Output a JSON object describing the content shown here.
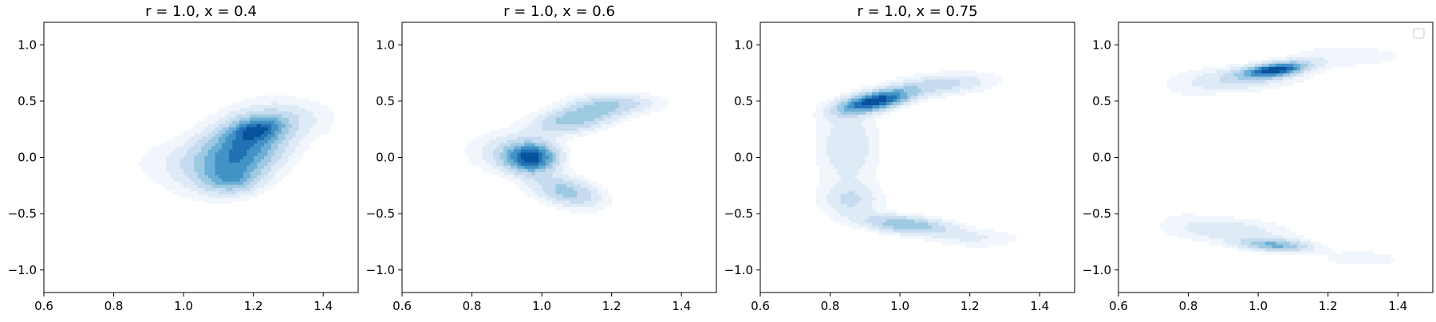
{
  "colors": {
    "background": "#ffffff",
    "axis": "#000000",
    "palette": "Blues"
  },
  "chart_data": [
    {
      "type": "kde-contour",
      "title": "r = 1.0, x = 0.4",
      "xlabel": "",
      "ylabel": "",
      "xlim": [
        0.6,
        1.5
      ],
      "ylim": [
        -1.2,
        1.2
      ],
      "xticks": [
        0.6,
        0.8,
        1.0,
        1.2,
        1.4
      ],
      "xtick_labels": [
        "0.6",
        "0.8",
        "1.0",
        "1.2",
        "1.4"
      ],
      "yticks": [
        1.0,
        0.5,
        0.0,
        -0.5,
        -1.0
      ],
      "ytick_labels": [
        "1.0",
        "0.5",
        "0.0",
        "−0.5",
        "−1.0"
      ],
      "grid": false,
      "legend": null,
      "density_components": [
        {
          "x": 1.16,
          "y": 0.05,
          "sx": 0.09,
          "sy": 0.2,
          "rho": 0.35,
          "w": 1.0
        },
        {
          "x": 1.21,
          "y": 0.25,
          "sx": 0.05,
          "sy": 0.07,
          "rho": 0.3,
          "w": 0.6
        },
        {
          "x": 1.14,
          "y": -0.2,
          "sx": 0.05,
          "sy": 0.08,
          "rho": 0.0,
          "w": 0.4
        },
        {
          "x": 1.3,
          "y": 0.35,
          "sx": 0.1,
          "sy": 0.12,
          "rho": 0.0,
          "w": 0.2
        },
        {
          "x": 0.98,
          "y": -0.05,
          "sx": 0.1,
          "sy": 0.15,
          "rho": 0.0,
          "w": 0.15
        }
      ]
    },
    {
      "type": "kde-contour",
      "title": "r = 1.0, x = 0.6",
      "xlabel": "",
      "ylabel": "",
      "xlim": [
        0.6,
        1.5
      ],
      "ylim": [
        -1.2,
        1.2
      ],
      "xticks": [
        0.6,
        0.8,
        1.0,
        1.2,
        1.4
      ],
      "xtick_labels": [
        "0.6",
        "0.8",
        "1.0",
        "1.2",
        "1.4"
      ],
      "yticks": [
        1.0,
        0.5,
        0.0,
        -0.5,
        -1.0
      ],
      "ytick_labels": [
        "1.0",
        "0.5",
        "0.0",
        "−0.5",
        "−1.0"
      ],
      "grid": false,
      "legend": null,
      "density_components": [
        {
          "x": 0.97,
          "y": 0.0,
          "sx": 0.05,
          "sy": 0.09,
          "rho": 0.0,
          "w": 1.0
        },
        {
          "x": 1.1,
          "y": 0.35,
          "sx": 0.09,
          "sy": 0.1,
          "rho": 0.5,
          "w": 0.5
        },
        {
          "x": 1.07,
          "y": -0.3,
          "sx": 0.07,
          "sy": 0.1,
          "rho": -0.4,
          "w": 0.45
        },
        {
          "x": 1.22,
          "y": 0.48,
          "sx": 0.09,
          "sy": 0.06,
          "rho": 0.0,
          "w": 0.25
        },
        {
          "x": 0.88,
          "y": 0.05,
          "sx": 0.07,
          "sy": 0.12,
          "rho": 0.0,
          "w": 0.2
        }
      ]
    },
    {
      "type": "kde-contour",
      "title": "r = 1.0, x = 0.75",
      "xlabel": "",
      "ylabel": "",
      "xlim": [
        0.6,
        1.5
      ],
      "ylim": [
        -1.2,
        1.2
      ],
      "xticks": [
        0.6,
        0.8,
        1.0,
        1.2,
        1.4
      ],
      "xtick_labels": [
        "0.6",
        "0.8",
        "1.0",
        "1.2",
        "1.4"
      ],
      "yticks": [
        1.0,
        0.5,
        0.0,
        -0.5,
        -1.0
      ],
      "ytick_labels": [
        "1.0",
        "0.5",
        "0.0",
        "−0.5",
        "−1.0"
      ],
      "grid": false,
      "legend": null,
      "density_components": [
        {
          "x": 0.93,
          "y": 0.5,
          "sx": 0.07,
          "sy": 0.07,
          "rho": 0.6,
          "w": 1.0
        },
        {
          "x": 1.12,
          "y": 0.65,
          "sx": 0.1,
          "sy": 0.07,
          "rho": 0.3,
          "w": 0.3
        },
        {
          "x": 0.85,
          "y": 0.1,
          "sx": 0.06,
          "sy": 0.25,
          "rho": 0.0,
          "w": 0.25
        },
        {
          "x": 0.86,
          "y": -0.38,
          "sx": 0.06,
          "sy": 0.1,
          "rho": 0.0,
          "w": 0.25
        },
        {
          "x": 1.02,
          "y": -0.6,
          "sx": 0.09,
          "sy": 0.06,
          "rho": -0.4,
          "w": 0.5
        },
        {
          "x": 1.22,
          "y": -0.72,
          "sx": 0.09,
          "sy": 0.06,
          "rho": 0.0,
          "w": 0.15
        }
      ]
    },
    {
      "type": "kde-contour",
      "title": "",
      "xlabel": "",
      "ylabel": "",
      "xlim": [
        0.6,
        1.5
      ],
      "ylim": [
        -1.2,
        1.2
      ],
      "xticks": [
        0.6,
        0.8,
        1.0,
        1.2,
        1.4
      ],
      "xtick_labels": [
        "0.6",
        "0.8",
        "1.0",
        "1.2",
        "1.4"
      ],
      "yticks": [
        1.0,
        0.5,
        0.0,
        -0.5,
        -1.0
      ],
      "ytick_labels": [
        "1.0",
        "0.5",
        "0.0",
        "−0.5",
        "−1.0"
      ],
      "grid": false,
      "legend": "upper right (empty)",
      "density_components": [
        {
          "x": 1.05,
          "y": 0.78,
          "sx": 0.06,
          "sy": 0.045,
          "rho": 0.5,
          "w": 1.0
        },
        {
          "x": 0.95,
          "y": 0.7,
          "sx": 0.12,
          "sy": 0.08,
          "rho": 0.3,
          "w": 0.3
        },
        {
          "x": 1.25,
          "y": 0.9,
          "sx": 0.12,
          "sy": 0.07,
          "rho": 0.0,
          "w": 0.15
        },
        {
          "x": 0.78,
          "y": 0.0,
          "sx": 0.06,
          "sy": 0.45,
          "rho": 0.0,
          "w": 0.07
        },
        {
          "x": 1.05,
          "y": -0.78,
          "sx": 0.07,
          "sy": 0.04,
          "rho": -0.3,
          "w": 0.55
        },
        {
          "x": 0.92,
          "y": -0.65,
          "sx": 0.12,
          "sy": 0.08,
          "rho": -0.3,
          "w": 0.25
        },
        {
          "x": 1.3,
          "y": -0.9,
          "sx": 0.1,
          "sy": 0.06,
          "rho": 0.0,
          "w": 0.12
        }
      ]
    }
  ]
}
